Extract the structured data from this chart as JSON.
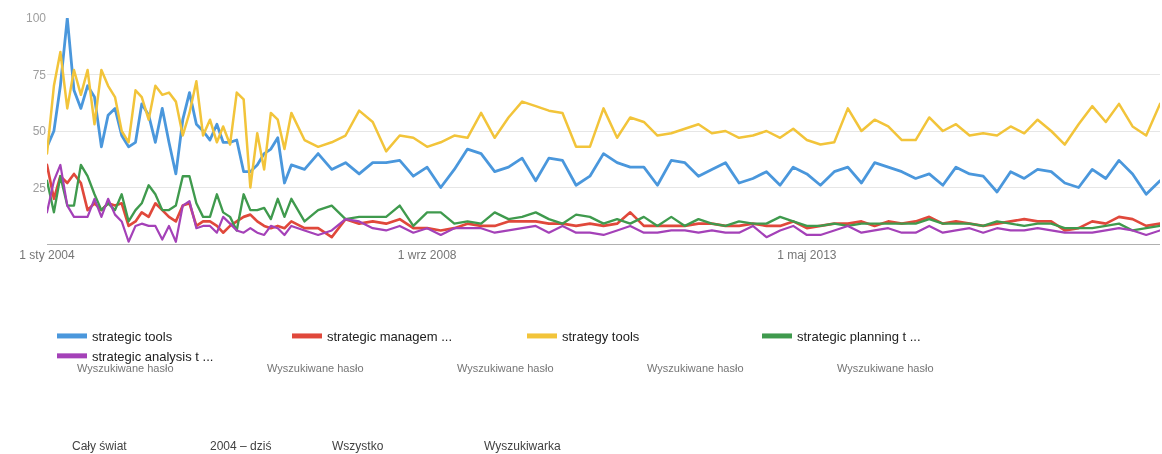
{
  "chart_data": {
    "type": "line",
    "legend": "bottom",
    "grid": "y",
    "x": [
      "2004-01",
      "2004-02",
      "2004-03",
      "2004-04",
      "2004-05",
      "2004-06",
      "2004-07",
      "2004-08",
      "2004-09",
      "2004-10",
      "2004-11",
      "2004-12",
      "2005-01",
      "2005-02",
      "2005-03",
      "2005-04",
      "2005-05",
      "2005-06",
      "2005-07",
      "2005-08",
      "2005-09",
      "2005-10",
      "2005-11",
      "2005-12",
      "2006-01",
      "2006-02",
      "2006-03",
      "2006-04",
      "2006-05",
      "2006-06",
      "2006-07",
      "2006-08",
      "2006-09",
      "2006-10",
      "2006-11",
      "2006-12",
      "2007-01",
      "2007-03",
      "2007-05",
      "2007-07",
      "2007-09",
      "2007-11",
      "2008-01",
      "2008-03",
      "2008-05",
      "2008-07",
      "2008-09",
      "2008-11",
      "2009-01",
      "2009-03",
      "2009-05",
      "2009-07",
      "2009-09",
      "2009-11",
      "2010-01",
      "2010-03",
      "2010-05",
      "2010-07",
      "2010-09",
      "2010-11",
      "2011-01",
      "2011-03",
      "2011-05",
      "2011-07",
      "2011-09",
      "2011-11",
      "2012-01",
      "2012-03",
      "2012-05",
      "2012-07",
      "2012-09",
      "2012-11",
      "2013-01",
      "2013-03",
      "2013-05",
      "2013-07",
      "2013-09",
      "2013-11",
      "2014-01",
      "2014-03",
      "2014-05",
      "2014-07",
      "2014-09",
      "2014-11",
      "2015-01",
      "2015-03",
      "2015-05",
      "2015-07",
      "2015-09",
      "2015-11",
      "2016-01",
      "2016-03",
      "2016-05",
      "2016-07",
      "2016-09",
      "2016-11",
      "2017-01",
      "2017-03",
      "2017-05",
      "2017-07",
      "2017-09"
    ],
    "xlim": [
      "2004-01",
      "2017-09"
    ],
    "xticks": [
      {
        "value": "2004-01-01",
        "label": "1 sty 2004"
      },
      {
        "value": "2008-09-01",
        "label": "1 wrz 2008"
      },
      {
        "value": "2013-05-01",
        "label": "1 maj 2013"
      }
    ],
    "ylim": [
      0,
      100
    ],
    "yticks": [
      25,
      50,
      75,
      100
    ],
    "series": [
      {
        "name": "strategic tools",
        "color": "#4a97dc",
        "values": [
          43,
          50,
          70,
          100,
          68,
          60,
          70,
          65,
          43,
          57,
          60,
          48,
          43,
          45,
          62,
          57,
          45,
          60,
          45,
          31,
          55,
          67,
          53,
          50,
          46,
          53,
          45,
          45,
          46,
          32,
          32,
          35,
          40,
          42,
          47,
          27,
          35,
          33,
          40,
          33,
          36,
          31,
          36,
          36,
          37,
          30,
          34,
          25,
          33,
          42,
          40,
          32,
          34,
          38,
          28,
          38,
          37,
          26,
          30,
          40,
          36,
          34,
          34,
          26,
          37,
          36,
          30,
          33,
          36,
          27,
          29,
          32,
          26,
          34,
          31,
          26,
          32,
          34,
          27,
          36,
          34,
          32,
          29,
          31,
          26,
          34,
          31,
          30,
          23,
          32,
          29,
          33,
          32,
          27,
          25,
          33,
          29,
          37,
          31,
          22,
          28
        ]
      },
      {
        "name": "strategic managem ...",
        "color": "#e0483b",
        "values": [
          35,
          20,
          30,
          27,
          31,
          27,
          15,
          18,
          15,
          18,
          17,
          18,
          8,
          10,
          14,
          12,
          18,
          15,
          12,
          10,
          17,
          18,
          8,
          10,
          10,
          8,
          5,
          8,
          10,
          12,
          13,
          10,
          8,
          7,
          8,
          7,
          10,
          7,
          7,
          3,
          11,
          9,
          10,
          9,
          11,
          7,
          7,
          6,
          7,
          9,
          8,
          8,
          10,
          10,
          10,
          9,
          9,
          8,
          9,
          8,
          9,
          14,
          8,
          8,
          8,
          8,
          9,
          9,
          8,
          8,
          9,
          8,
          8,
          10,
          7,
          8,
          9,
          9,
          10,
          8,
          10,
          9,
          10,
          12,
          9,
          10,
          9,
          8,
          9,
          10,
          11,
          10,
          10,
          6,
          7,
          10,
          9,
          12,
          11,
          8,
          9
        ]
      },
      {
        "name": "strategy tools",
        "color": "#f2c43a",
        "values": [
          40,
          70,
          85,
          60,
          77,
          66,
          77,
          53,
          77,
          70,
          65,
          50,
          45,
          68,
          65,
          55,
          70,
          66,
          67,
          63,
          48,
          58,
          72,
          48,
          55,
          45,
          52,
          44,
          67,
          64,
          25,
          49,
          33,
          58,
          55,
          42,
          58,
          46,
          43,
          45,
          48,
          59,
          54,
          41,
          48,
          47,
          43,
          45,
          48,
          47,
          58,
          47,
          56,
          63,
          61,
          59,
          58,
          43,
          43,
          60,
          47,
          56,
          54,
          48,
          49,
          51,
          53,
          49,
          50,
          47,
          48,
          50,
          47,
          51,
          46,
          44,
          45,
          60,
          50,
          55,
          52,
          46,
          46,
          56,
          50,
          53,
          48,
          49,
          48,
          52,
          49,
          55,
          50,
          44,
          53,
          61,
          54,
          62,
          52,
          48,
          62
        ]
      },
      {
        "name": "strategic planning t ...",
        "color": "#3f9a4d",
        "values": [
          28,
          14,
          30,
          17,
          17,
          35,
          30,
          22,
          15,
          18,
          15,
          22,
          10,
          15,
          18,
          26,
          22,
          15,
          15,
          17,
          30,
          30,
          18,
          12,
          12,
          22,
          14,
          12,
          6,
          22,
          15,
          15,
          16,
          11,
          20,
          12,
          20,
          10,
          15,
          17,
          11,
          12,
          12,
          12,
          17,
          8,
          14,
          14,
          9,
          10,
          9,
          14,
          11,
          12,
          14,
          11,
          9,
          13,
          12,
          9,
          11,
          9,
          12,
          8,
          12,
          8,
          11,
          9,
          8,
          10,
          9,
          9,
          12,
          10,
          8,
          8,
          9,
          8,
          9,
          9,
          9,
          9,
          9,
          11,
          9,
          9,
          9,
          8,
          10,
          9,
          8,
          9,
          9,
          7,
          7,
          7,
          8,
          9,
          6,
          7,
          8
        ]
      },
      {
        "name": "strategic analysis t ...",
        "color": "#a441b8",
        "values": [
          14,
          28,
          35,
          17,
          12,
          12,
          12,
          20,
          12,
          20,
          13,
          10,
          1,
          8,
          9,
          8,
          8,
          2,
          8,
          1,
          17,
          19,
          7,
          8,
          8,
          5,
          12,
          9,
          6,
          5,
          7,
          5,
          4,
          8,
          7,
          4,
          8,
          6,
          4,
          6,
          11,
          10,
          7,
          6,
          8,
          5,
          7,
          4,
          7,
          7,
          7,
          5,
          6,
          7,
          8,
          5,
          8,
          5,
          5,
          4,
          6,
          8,
          5,
          5,
          6,
          6,
          5,
          6,
          5,
          5,
          8,
          3,
          6,
          8,
          4,
          4,
          6,
          8,
          5,
          6,
          7,
          5,
          5,
          8,
          5,
          6,
          7,
          5,
          7,
          6,
          6,
          7,
          6,
          5,
          5,
          5,
          6,
          7,
          6,
          4,
          6
        ]
      }
    ],
    "annotations": [
      "Wyszukiwane hasło",
      "Wyszukiwane hasło",
      "Wyszukiwane hasło",
      "Wyszukiwane hasło",
      "Wyszukiwane hasło",
      "Cały świat",
      "2004 – dziś",
      "Wszystko",
      "Wyszukiwarka"
    ]
  }
}
